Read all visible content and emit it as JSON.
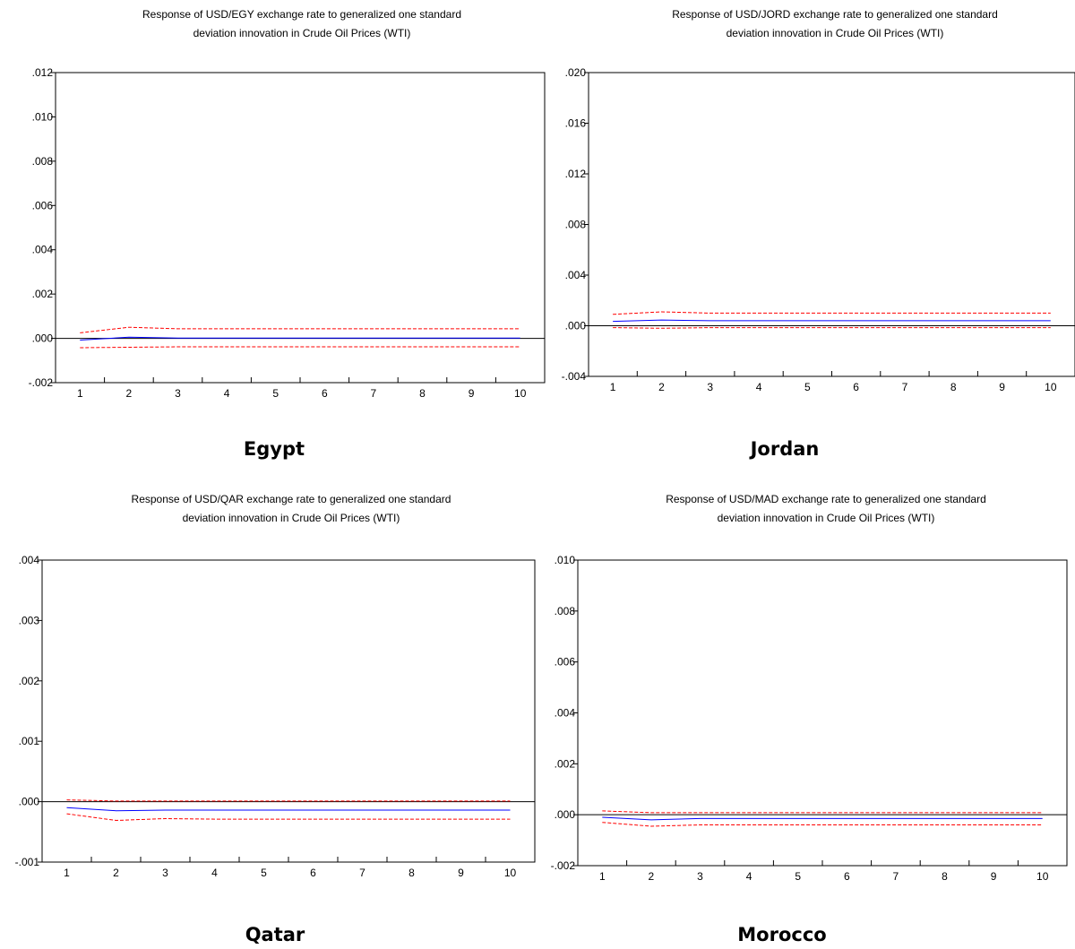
{
  "chart_data": [
    {
      "type": "line",
      "title": "Response of USD/EGY exchange rate to generalized one standard deviation innovation in Crude Oil Prices (WTI)",
      "title_lines": [
        "Response of USD/EGY exchange rate to generalized one standard",
        "deviation innovation in Crude Oil Prices (WTI)"
      ],
      "caption": "Egypt",
      "x": [
        1,
        2,
        3,
        4,
        5,
        6,
        7,
        8,
        9,
        10
      ],
      "xlim": [
        0.5,
        10.5
      ],
      "ylim": [
        -0.002,
        0.012
      ],
      "yticks": [
        -0.002,
        0.0,
        0.002,
        0.004,
        0.006,
        0.008,
        0.01,
        0.012
      ],
      "ytick_labels": [
        "-.002",
        ".000",
        ".002",
        ".004",
        ".006",
        ".008",
        ".010",
        ".012"
      ],
      "series": [
        {
          "role": "response",
          "color": "#0000ff",
          "dashed": false,
          "values": [
            -8e-05,
            5e-05,
            1e-05,
            1e-05,
            1e-05,
            1e-05,
            1e-05,
            1e-05,
            1e-05,
            1e-05
          ]
        },
        {
          "role": "upper",
          "color": "#ff0000",
          "dashed": true,
          "values": [
            0.00025,
            0.0005,
            0.00043,
            0.00043,
            0.00043,
            0.00043,
            0.00043,
            0.00043,
            0.00043,
            0.00043
          ]
        },
        {
          "role": "lower",
          "color": "#ff0000",
          "dashed": true,
          "values": [
            -0.00042,
            -0.0004,
            -0.00038,
            -0.00038,
            -0.00038,
            -0.00038,
            -0.00038,
            -0.00038,
            -0.00038,
            -0.00038
          ]
        }
      ]
    },
    {
      "type": "line",
      "title": "Response of USD/JORD exchange rate to generalized one standard deviation innovation in Crude Oil Prices (WTI)",
      "title_lines": [
        "Response of USD/JORD exchange rate to generalized one standard",
        "deviation innovation in Crude Oil Prices (WTI)"
      ],
      "caption": "Jordan",
      "x": [
        1,
        2,
        3,
        4,
        5,
        6,
        7,
        8,
        9,
        10
      ],
      "xlim": [
        0.5,
        10.5
      ],
      "ylim": [
        -0.004,
        0.02
      ],
      "yticks": [
        -0.004,
        0.0,
        0.004,
        0.008,
        0.012,
        0.016,
        0.02
      ],
      "ytick_labels": [
        "-.004",
        ".000",
        ".004",
        ".008",
        ".012",
        ".016",
        ".020"
      ],
      "series": [
        {
          "role": "response",
          "color": "#0000ff",
          "dashed": false,
          "values": [
            0.00035,
            0.00045,
            0.0004,
            0.0004,
            0.0004,
            0.0004,
            0.0004,
            0.0004,
            0.0004,
            0.0004
          ]
        },
        {
          "role": "upper",
          "color": "#ff0000",
          "dashed": true,
          "values": [
            0.0009,
            0.0011,
            0.001,
            0.001,
            0.001,
            0.001,
            0.001,
            0.001,
            0.001,
            0.001
          ]
        },
        {
          "role": "lower",
          "color": "#ff0000",
          "dashed": true,
          "values": [
            -0.00015,
            -0.0002,
            -0.00015,
            -0.00015,
            -0.00015,
            -0.00015,
            -0.00015,
            -0.00015,
            -0.00015,
            -0.00015
          ]
        }
      ]
    },
    {
      "type": "line",
      "title": "Response of USD/QAR exchange rate to generalized one standard deviation innovation in Crude Oil Prices (WTI)",
      "title_lines": [
        "Response of USD/QAR exchange rate to generalized one standard",
        "deviation innovation in Crude Oil Prices (WTI)"
      ],
      "caption": "Qatar",
      "x": [
        1,
        2,
        3,
        4,
        5,
        6,
        7,
        8,
        9,
        10
      ],
      "xlim": [
        0.5,
        10.5
      ],
      "ylim": [
        -0.001,
        0.004
      ],
      "yticks": [
        -0.001,
        0.0,
        0.001,
        0.002,
        0.003,
        0.004
      ],
      "ytick_labels": [
        "-.001",
        ".000",
        ".001",
        ".002",
        ".003",
        ".004"
      ],
      "series": [
        {
          "role": "response",
          "color": "#0000ff",
          "dashed": false,
          "values": [
            -0.0001,
            -0.00015,
            -0.00014,
            -0.00014,
            -0.00014,
            -0.00014,
            -0.00014,
            -0.00014,
            -0.00014,
            -0.00014
          ]
        },
        {
          "role": "upper",
          "color": "#ff0000",
          "dashed": true,
          "values": [
            3e-05,
            1e-05,
            1e-05,
            1e-05,
            1e-05,
            1e-05,
            1e-05,
            1e-05,
            1e-05,
            1e-05
          ]
        },
        {
          "role": "lower",
          "color": "#ff0000",
          "dashed": true,
          "values": [
            -0.0002,
            -0.00031,
            -0.00028,
            -0.00029,
            -0.00029,
            -0.00029,
            -0.00029,
            -0.00029,
            -0.00029,
            -0.00029
          ]
        }
      ]
    },
    {
      "type": "line",
      "title": "Response of USD/MAD exchange rate to generalized one standard deviation innovation in Crude Oil Prices (WTI)",
      "title_lines": [
        "Response of USD/MAD exchange rate to generalized one standard",
        "deviation innovation in Crude Oil Prices (WTI)"
      ],
      "caption": "Morocco",
      "x": [
        1,
        2,
        3,
        4,
        5,
        6,
        7,
        8,
        9,
        10
      ],
      "xlim": [
        0.5,
        10.5
      ],
      "ylim": [
        -0.002,
        0.01
      ],
      "yticks": [
        -0.002,
        0.0,
        0.002,
        0.004,
        0.006,
        0.008,
        0.01
      ],
      "ytick_labels": [
        "-.002",
        ".000",
        ".002",
        ".004",
        ".006",
        ".008",
        ".010"
      ],
      "series": [
        {
          "role": "response",
          "color": "#0000ff",
          "dashed": false,
          "values": [
            -0.0001,
            -0.0002,
            -0.00015,
            -0.00015,
            -0.00015,
            -0.00015,
            -0.00015,
            -0.00015,
            -0.00015,
            -0.00015
          ]
        },
        {
          "role": "upper",
          "color": "#ff0000",
          "dashed": true,
          "values": [
            0.00015,
            8e-05,
            8e-05,
            8e-05,
            8e-05,
            8e-05,
            8e-05,
            8e-05,
            8e-05,
            8e-05
          ]
        },
        {
          "role": "lower",
          "color": "#ff0000",
          "dashed": true,
          "values": [
            -0.0003,
            -0.00045,
            -0.0004,
            -0.0004,
            -0.0004,
            -0.0004,
            -0.0004,
            -0.0004,
            -0.0004,
            -0.0004
          ]
        }
      ]
    }
  ]
}
